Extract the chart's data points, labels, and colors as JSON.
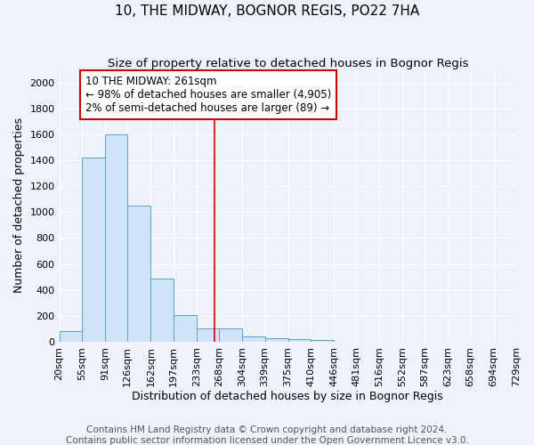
{
  "title": "10, THE MIDWAY, BOGNOR REGIS, PO22 7HA",
  "subtitle": "Size of property relative to detached houses in Bognor Regis",
  "xlabel": "Distribution of detached houses by size in Bognor Regis",
  "ylabel": "Number of detached properties",
  "footnote1": "Contains HM Land Registry data © Crown copyright and database right 2024.",
  "footnote2": "Contains public sector information licensed under the Open Government Licence v3.0.",
  "bin_edges": [
    20,
    55,
    91,
    126,
    162,
    197,
    233,
    268,
    304,
    339,
    375,
    410,
    446,
    481,
    516,
    552,
    587,
    623,
    658,
    694,
    729
  ],
  "bar_heights": [
    80,
    1420,
    1600,
    1050,
    490,
    205,
    105,
    105,
    40,
    30,
    20,
    15,
    0,
    0,
    0,
    0,
    0,
    0,
    0,
    0
  ],
  "bar_color": "#d0e4f7",
  "bar_edgecolor": "#5a9fd4",
  "bg_color": "#edf2fb",
  "grid_color": "#ffffff",
  "vline_x": 261,
  "vline_color": "#cc0000",
  "annotation_text": "10 THE MIDWAY: 261sqm\n← 98% of detached houses are smaller (4,905)\n2% of semi-detached houses are larger (89) →",
  "annotation_box_color": "#ffffff",
  "annotation_box_edgecolor": "#cc0000",
  "ylim": [
    0,
    2100
  ],
  "yticks": [
    0,
    200,
    400,
    600,
    800,
    1000,
    1200,
    1400,
    1600,
    1800,
    2000
  ],
  "title_fontsize": 11,
  "subtitle_fontsize": 9.5,
  "xlabel_fontsize": 9,
  "ylabel_fontsize": 9,
  "tick_fontsize": 8,
  "annotation_fontsize": 8.5,
  "footnote_fontsize": 7.5
}
